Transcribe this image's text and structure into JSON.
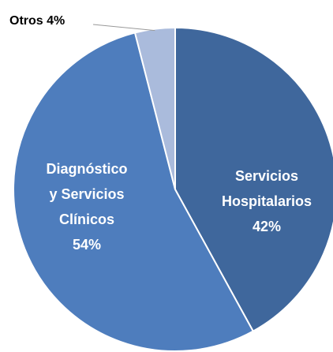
{
  "chart_data": {
    "type": "pie",
    "categories": [
      [
        "Servicios",
        "Hospitalarios"
      ],
      [
        "Diagnóstico",
        "y Servicios",
        "Clínicos"
      ],
      [
        "Otros"
      ]
    ],
    "values": [
      42,
      54,
      4
    ],
    "value_labels": [
      "42%",
      "54%",
      "4%"
    ],
    "colors": [
      "#3f679c",
      "#4e7dbd",
      "#aabbdc"
    ]
  }
}
